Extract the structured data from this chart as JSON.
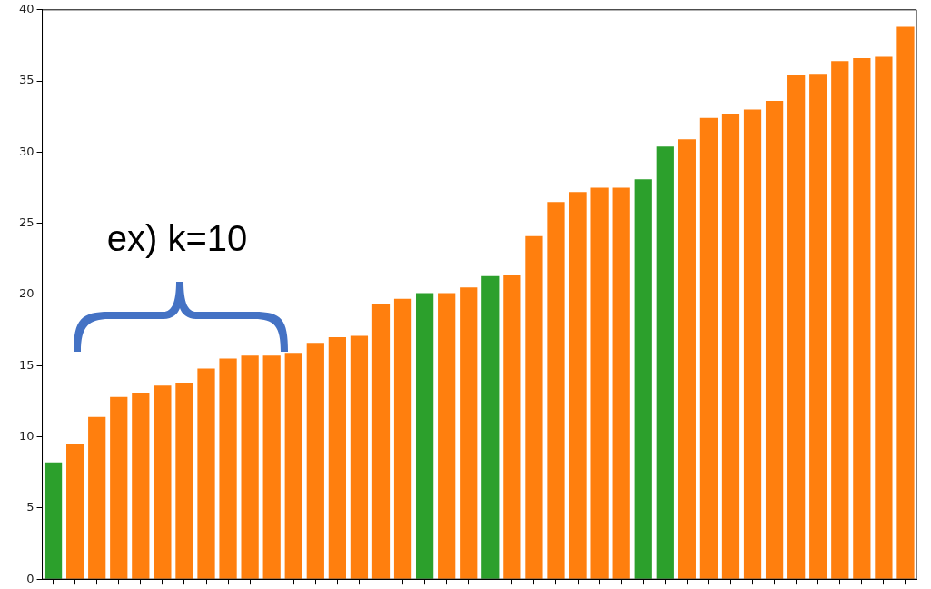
{
  "chart_data": {
    "type": "bar",
    "categories": [
      null,
      null,
      null,
      null,
      null,
      null,
      null,
      null,
      null,
      null,
      null,
      null,
      null,
      null,
      null,
      null,
      null,
      null,
      null,
      null,
      null,
      null,
      null,
      null,
      null,
      null,
      null,
      null,
      null,
      null,
      null,
      null,
      null,
      null,
      null,
      null,
      null,
      null,
      null,
      null
    ],
    "values": [
      8.2,
      9.5,
      11.4,
      12.8,
      13.1,
      13.6,
      13.8,
      14.8,
      15.5,
      15.7,
      15.7,
      15.9,
      16.6,
      17.0,
      17.1,
      19.3,
      19.7,
      20.1,
      20.1,
      20.5,
      21.3,
      21.4,
      24.1,
      26.5,
      27.2,
      27.5,
      27.5,
      28.1,
      30.4,
      30.9,
      32.4,
      32.7,
      33.0,
      33.6,
      35.4,
      35.5,
      36.4,
      36.6,
      36.7,
      38.8
    ],
    "colors": [
      "#2ca02c",
      "#ff7f0e",
      "#ff7f0e",
      "#ff7f0e",
      "#ff7f0e",
      "#ff7f0e",
      "#ff7f0e",
      "#ff7f0e",
      "#ff7f0e",
      "#ff7f0e",
      "#ff7f0e",
      "#ff7f0e",
      "#ff7f0e",
      "#ff7f0e",
      "#ff7f0e",
      "#ff7f0e",
      "#ff7f0e",
      "#2ca02c",
      "#ff7f0e",
      "#ff7f0e",
      "#2ca02c",
      "#ff7f0e",
      "#ff7f0e",
      "#ff7f0e",
      "#ff7f0e",
      "#ff7f0e",
      "#ff7f0e",
      "#2ca02c",
      "#2ca02c",
      "#ff7f0e",
      "#ff7f0e",
      "#ff7f0e",
      "#ff7f0e",
      "#ff7f0e",
      "#ff7f0e",
      "#ff7f0e",
      "#ff7f0e",
      "#ff7f0e",
      "#ff7f0e",
      "#ff7f0e"
    ],
    "ylim": [
      0,
      40
    ],
    "yticks": [
      0,
      5,
      10,
      15,
      20,
      25,
      30,
      35,
      40
    ],
    "grid": false,
    "legend": false,
    "tick_labels": "y",
    "annotations": [
      "ex) k=10"
    ]
  }
}
